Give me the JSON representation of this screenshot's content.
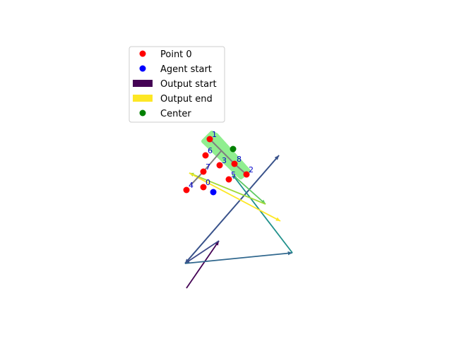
{
  "chart_data": {
    "type": "scatter",
    "title": "",
    "xlabel": "",
    "ylabel": "",
    "axes_visible": false,
    "xlim": [
      0,
      640
    ],
    "ylim": [
      480,
      0
    ],
    "legend": {
      "placement": "upper-left",
      "entries": [
        {
          "label": "Point 0",
          "kind": "marker",
          "color": "#ff0000"
        },
        {
          "label": "Agent start",
          "kind": "marker",
          "color": "#0000ff"
        },
        {
          "label": "Output start",
          "kind": "patch",
          "color": "#440154"
        },
        {
          "label": "Output end",
          "kind": "patch",
          "color": "#fde725"
        },
        {
          "label": "Center",
          "kind": "marker",
          "color": "#008000"
        }
      ]
    },
    "points": [
      {
        "label": "0",
        "x": 288,
        "y": 265
      },
      {
        "label": "1",
        "x": 297,
        "y": 197
      },
      {
        "label": "2",
        "x": 349,
        "y": 247
      },
      {
        "label": "3",
        "x": 311,
        "y": 234
      },
      {
        "label": "4",
        "x": 264,
        "y": 269
      },
      {
        "label": "5",
        "x": 324,
        "y": 254
      },
      {
        "label": "6",
        "x": 291,
        "y": 220
      },
      {
        "label": "7",
        "x": 288,
        "y": 243
      },
      {
        "label": "8",
        "x": 332,
        "y": 232
      }
    ],
    "agent_start": {
      "x": 302,
      "y": 272
    },
    "center": {
      "x": 330,
      "y": 211
    },
    "green_region": [
      [
        300,
        188
      ],
      [
        288,
        200
      ],
      [
        341,
        251
      ],
      [
        352,
        242
      ],
      [
        306,
        191
      ]
    ],
    "gray_path": [
      [
        297,
        197
      ],
      [
        332,
        232
      ],
      [
        349,
        247
      ]
    ],
    "gray_path_2": [
      [
        313,
        214
      ],
      [
        288,
        243
      ],
      [
        270,
        262
      ]
    ],
    "trajectory": {
      "colormap": "viridis",
      "segments": [
        {
          "from": [
            264,
            408
          ],
          "to": [
            310,
            341
          ],
          "color": "#440154"
        },
        {
          "from": [
            310,
            341
          ],
          "to": [
            262,
            373
          ],
          "color": "#3e4a89"
        },
        {
          "from": [
            262,
            373
          ],
          "to": [
            395,
            220
          ],
          "color": "#3a538b"
        },
        {
          "from": [
            395,
            220
          ],
          "to": [
            262,
            373
          ],
          "color": "#3a538b"
        },
        {
          "from": [
            262,
            373
          ],
          "to": [
            414,
            358
          ],
          "color": "#31688e"
        },
        {
          "from": [
            414,
            358
          ],
          "to": [
            329,
            247
          ],
          "color": "#21918c"
        },
        {
          "from": [
            329,
            247
          ],
          "to": [
            376,
            289
          ],
          "color": "#5ec962"
        },
        {
          "from": [
            376,
            289
          ],
          "to": [
            268,
            245
          ],
          "color": "#a0da39"
        },
        {
          "from": [
            268,
            245
          ],
          "to": [
            397,
            313
          ],
          "color": "#fde725"
        }
      ]
    }
  }
}
